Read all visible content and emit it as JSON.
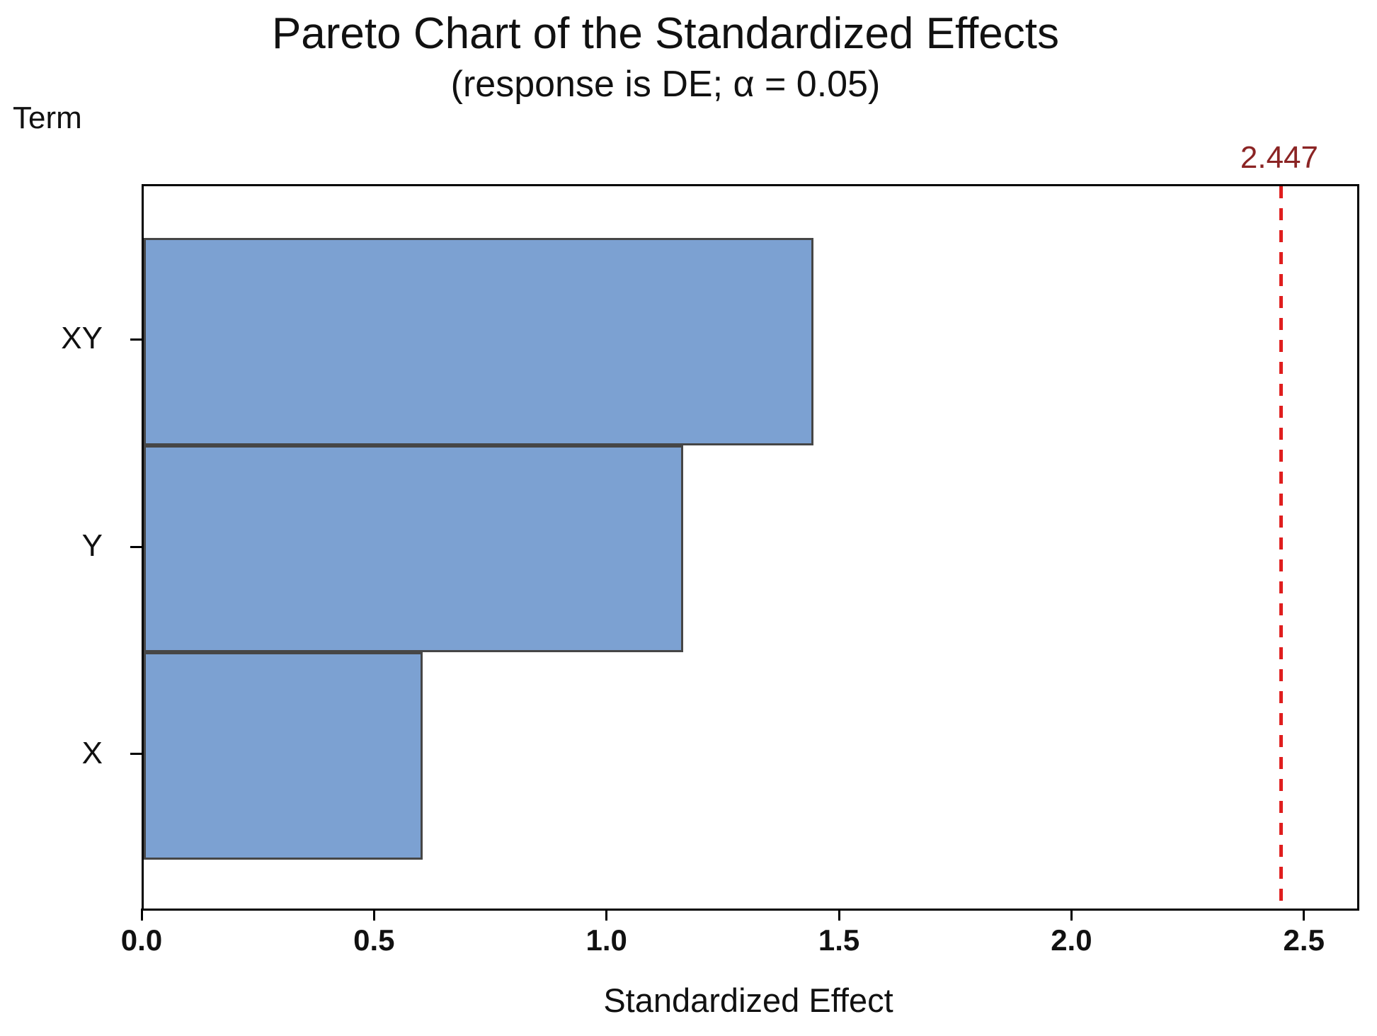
{
  "page": {
    "title": "Pareto Chart of the Standardized Effects",
    "subtitle": "(response is DE; α = 0.05)",
    "term_label": "Term",
    "xlabel": "Standardized Effect",
    "reference_value_label": "2.447"
  },
  "colors": {
    "bar_fill": "#7CA1D2",
    "bar_border": "#464646",
    "frame": "#000000",
    "reference_line": "#E01E1E",
    "reference_label": "#8B2424",
    "text": "#111111"
  },
  "chart_data": {
    "type": "bar",
    "orientation": "horizontal",
    "title": "Pareto Chart of the Standardized Effects",
    "subtitle": "(response is DE; α = 0.05)",
    "response": "DE",
    "alpha": 0.05,
    "ylabel": "Term",
    "xlabel": "Standardized Effect",
    "categories": [
      "XY",
      "Y",
      "X"
    ],
    "values": [
      1.44,
      1.16,
      0.6
    ],
    "x_ticks": [
      0.0,
      0.5,
      1.0,
      1.5,
      2.0,
      2.5
    ],
    "x_tick_labels": [
      "0.0",
      "0.5",
      "1.0",
      "1.5",
      "2.0",
      "2.5"
    ],
    "xlim": [
      0,
      2.61
    ],
    "reference_line": {
      "value": 2.447,
      "label": "2.447",
      "style": "dashed"
    },
    "grid": false,
    "legend": false
  }
}
